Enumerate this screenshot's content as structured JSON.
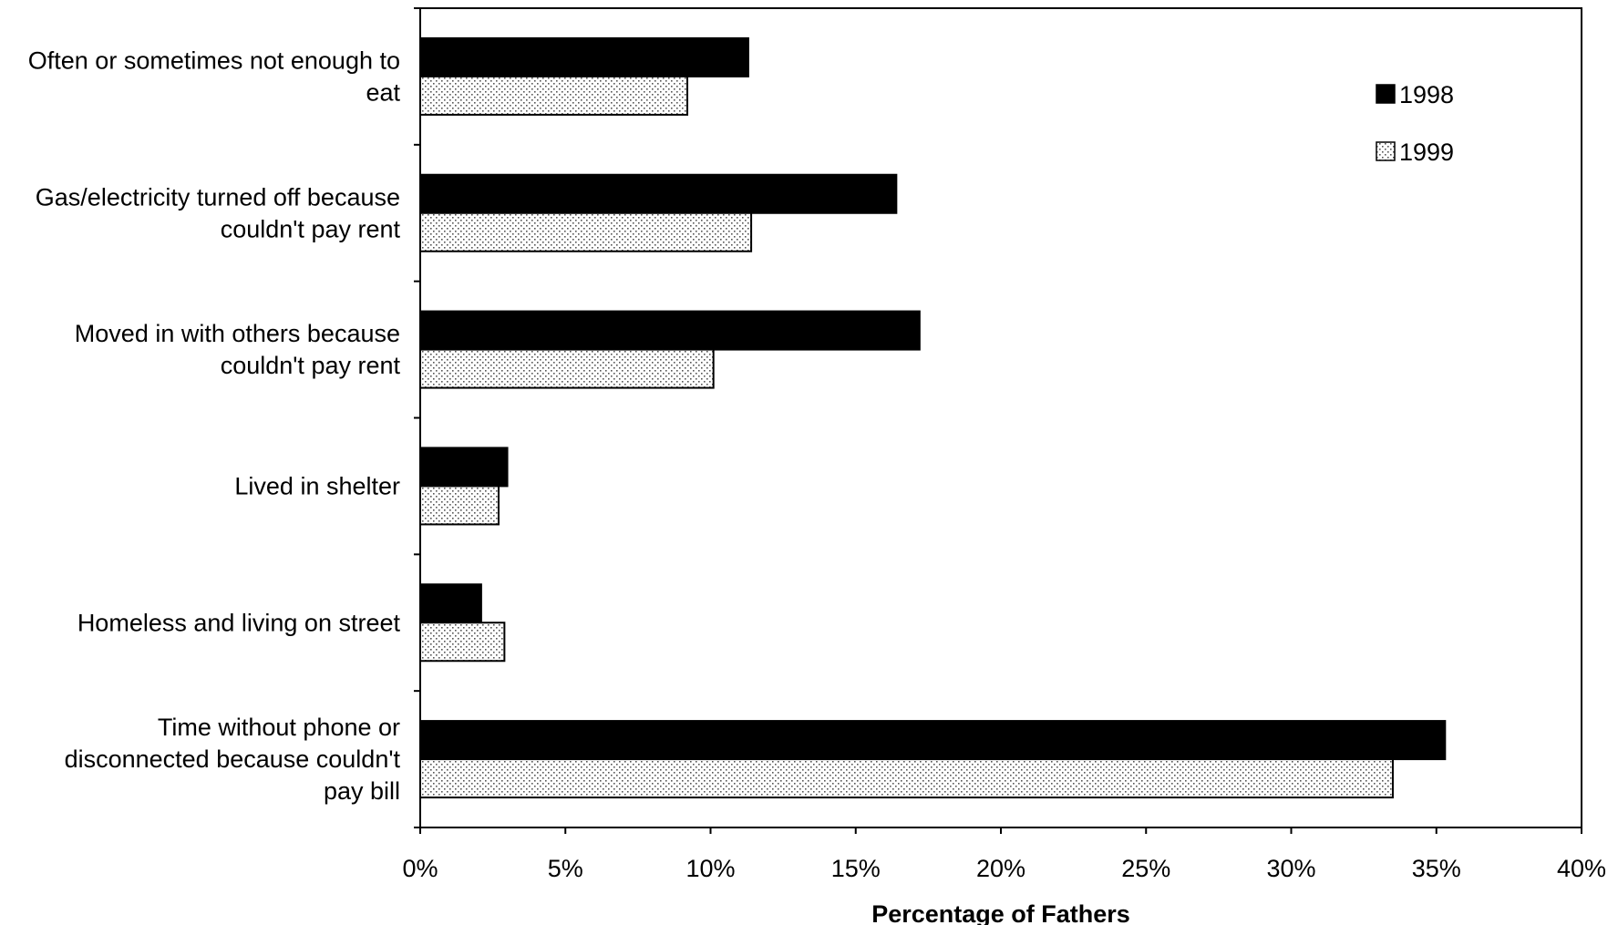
{
  "chart_data": {
    "type": "bar",
    "orientation": "horizontal",
    "categories": [
      [
        "Often or sometimes not enough to",
        "eat"
      ],
      [
        "Gas/electricity turned off because",
        "couldn't pay rent"
      ],
      [
        "Moved in with others because",
        "couldn't pay rent"
      ],
      [
        "Lived in shelter"
      ],
      [
        "Homeless and living on street"
      ],
      [
        "Time without phone or",
        "disconnected because couldn't",
        "pay bill"
      ]
    ],
    "series": [
      {
        "name": "1998",
        "values": [
          11.3,
          16.4,
          17.2,
          3.0,
          2.1,
          35.3
        ],
        "fill": "solid",
        "color": "#000000"
      },
      {
        "name": "1999",
        "values": [
          9.2,
          11.4,
          10.1,
          2.7,
          2.9,
          33.5
        ],
        "fill": "dotted",
        "color": "#ffffff"
      }
    ],
    "xlabel": "Percentage of Fathers",
    "ylabel": "",
    "xlim": [
      0,
      40
    ],
    "xticks": [
      "0%",
      "5%",
      "10%",
      "15%",
      "20%",
      "25%",
      "30%",
      "35%",
      "40%"
    ],
    "grid": false,
    "legend_position": "top-right"
  }
}
